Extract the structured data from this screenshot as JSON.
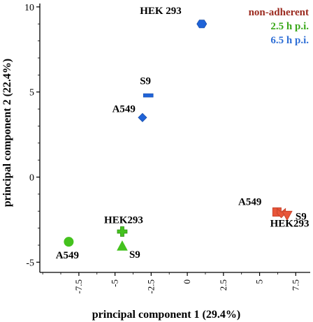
{
  "chart_data": {
    "type": "scatter",
    "title": "",
    "xlabel": "principal component 1 (29.4%)",
    "ylabel": "principal component 2 (22.4%)",
    "xlim": [
      -10.2,
      8.5
    ],
    "ylim": [
      -5.6,
      10.2
    ],
    "x_ticks": [
      "-7.5",
      "-5",
      "-2.5",
      "0",
      "2.5",
      "5",
      "7.5"
    ],
    "x_tick_values": [
      -7.5,
      -5,
      -2.5,
      0,
      2.5,
      5,
      7.5
    ],
    "y_ticks": [
      "-5",
      "0",
      "5",
      "10"
    ],
    "y_tick_values": [
      -5,
      0,
      5,
      10
    ],
    "grid": false,
    "legend_position": "top-right",
    "series": [
      {
        "name": "non-adherent",
        "color": "#e8563a",
        "text_color": "#9b2a1f",
        "points": [
          {
            "x": 6.2,
            "y": -2.05,
            "marker": "square",
            "label": "A549"
          },
          {
            "x": 6.5,
            "y": -2.1,
            "marker": "chevron-down",
            "label": "HEK293"
          },
          {
            "x": 6.9,
            "y": -2.25,
            "marker": "triangle-down",
            "label": "S9"
          }
        ]
      },
      {
        "name": "2.5 h p.i.",
        "color": "#44c21e",
        "text_color": "#3aa81a",
        "points": [
          {
            "x": -8.2,
            "y": -3.8,
            "marker": "circle",
            "label": "A549"
          },
          {
            "x": -4.5,
            "y": -3.2,
            "marker": "plus",
            "label": "HEK293"
          },
          {
            "x": -4.5,
            "y": -4.05,
            "marker": "triangle",
            "label": "S9"
          }
        ]
      },
      {
        "name": "6.5 h p.i.",
        "color": "#1f63d8",
        "text_color": "#2f6fd6",
        "points": [
          {
            "x": -3.1,
            "y": 3.5,
            "marker": "diamond",
            "label": "A549"
          },
          {
            "x": -2.7,
            "y": 4.8,
            "marker": "dash",
            "label": "S9"
          },
          {
            "x": 1.0,
            "y": 9.0,
            "marker": "hexagon",
            "label": "HEK 293"
          }
        ]
      }
    ]
  }
}
